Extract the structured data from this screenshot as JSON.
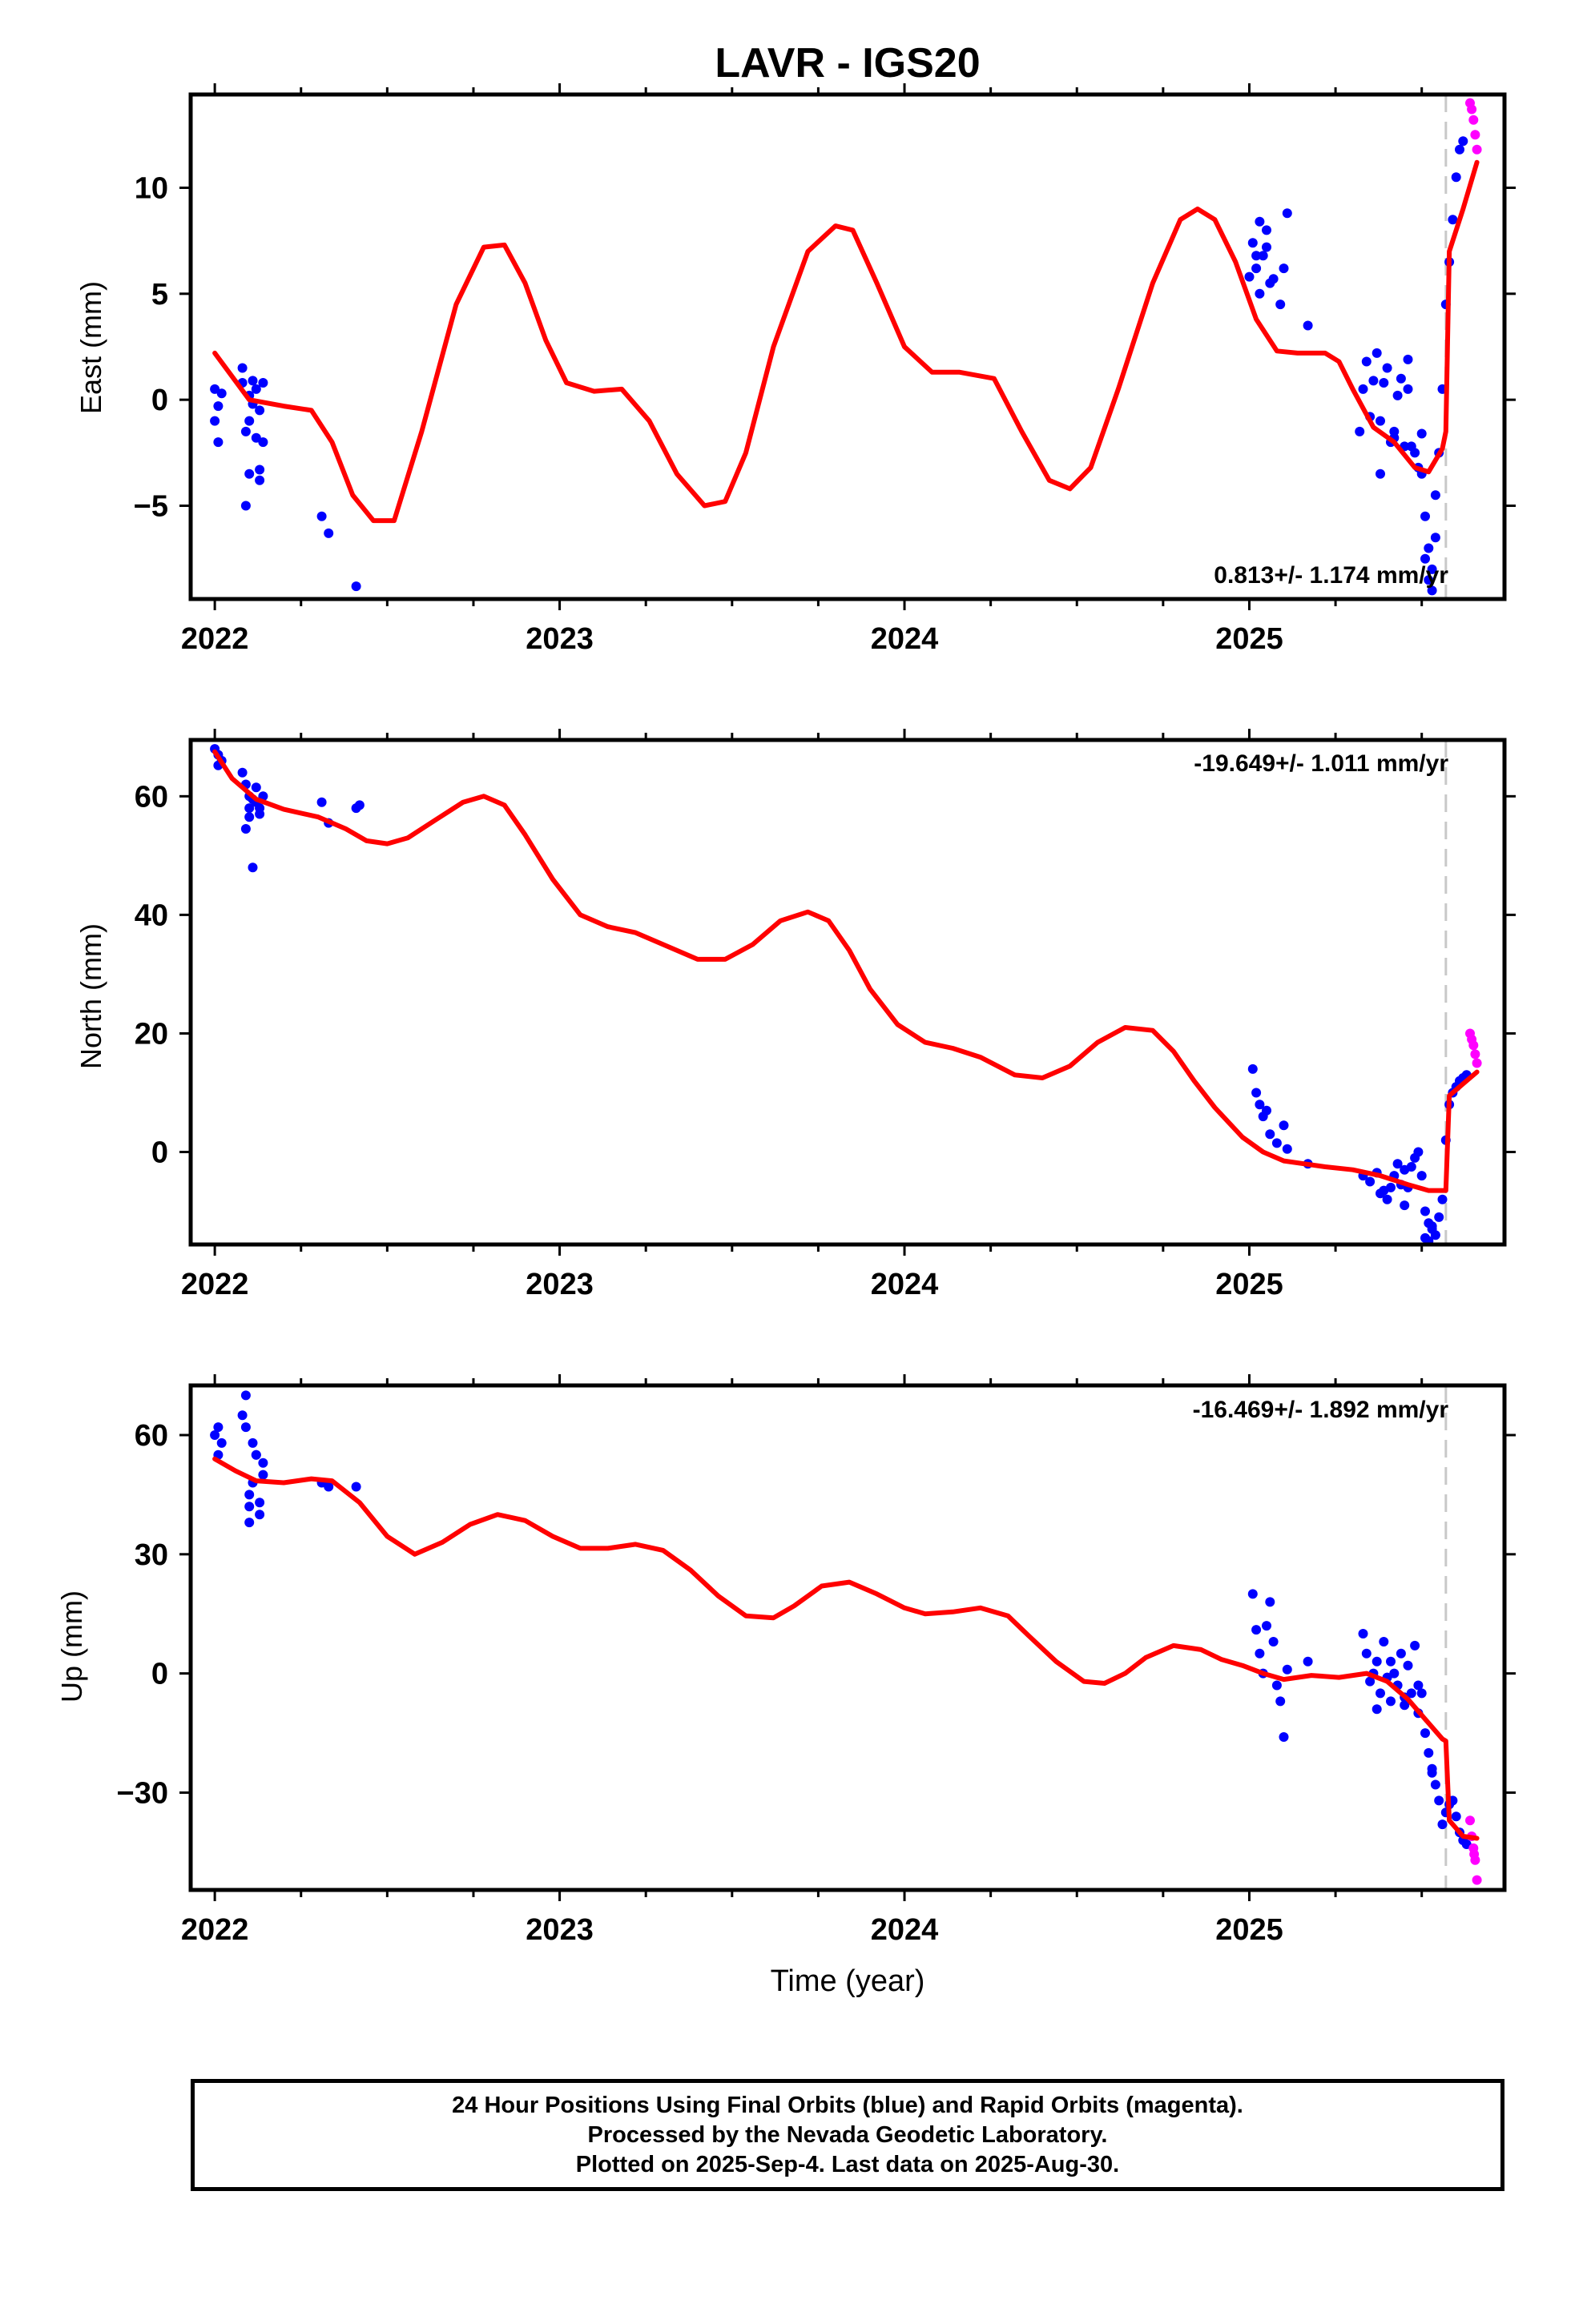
{
  "title": "LAVR - IGS20",
  "caption": [
    "24 Hour Positions Using Final Orbits (blue) and Rapid Orbits (magenta).",
    "Processed by the Nevada Geodetic Laboratory.",
    "Plotted on 2025-Sep-4. Last data on 2025-Aug-30."
  ],
  "colors": {
    "final": "#0000ff",
    "rapid": "#ff00ff",
    "model": "#ff0000",
    "marker": "#c8c8c8",
    "axis": "#000000"
  },
  "chart_data": [
    {
      "type": "scatter",
      "component": "east",
      "ylabel": "East (mm)",
      "xlabel": "",
      "xlim": [
        2021.93,
        2025.74
      ],
      "ylim": [
        -9.4,
        14.4
      ],
      "xticks": [
        2022,
        2023,
        2024,
        2025
      ],
      "yticks": [
        -5,
        0,
        5,
        10
      ],
      "ytick_labels": [
        "−5",
        "0",
        "5",
        "10"
      ],
      "velocity_label": "0.813+/- 1.174 mm/yr",
      "velocity_position": "bottom-right",
      "marker_x": 2025.57,
      "series": [
        {
          "kind": "final",
          "x": [
            2022.0,
            2022.01,
            2022.02,
            2022.0,
            2022.01,
            2022.08,
            2022.08,
            2022.09,
            2022.1,
            2022.1,
            2022.11,
            2022.12,
            2022.13,
            2022.13,
            2022.14,
            2022.09,
            2022.11,
            2022.13,
            2022.1,
            2022.12,
            2022.14,
            2022.31,
            2022.33,
            2022.41,
            2025.0,
            2025.01,
            2025.02,
            2025.03,
            2025.04,
            2025.05,
            2025.06,
            2025.02,
            2025.03,
            2025.05,
            2025.07,
            2025.09,
            2025.1,
            2025.11,
            2025.17,
            2025.32,
            2025.33,
            2025.34,
            2025.35,
            2025.36,
            2025.37,
            2025.38,
            2025.39,
            2025.4,
            2025.41,
            2025.42,
            2025.43,
            2025.44,
            2025.45,
            2025.46,
            2025.47,
            2025.48,
            2025.49,
            2025.5,
            2025.51,
            2025.52,
            2025.53,
            2025.54,
            2025.55,
            2025.56,
            2025.57,
            2025.58,
            2025.59,
            2025.6,
            2025.61,
            2025.62,
            2025.38,
            2025.42,
            2025.46,
            2025.5,
            2025.54,
            2025.51,
            2025.52,
            2025.53
          ],
          "y": [
            -1.0,
            -2.0,
            0.3,
            0.5,
            -0.3,
            1.5,
            0.8,
            -1.5,
            0.2,
            -3.5,
            0.9,
            -1.8,
            -0.5,
            -3.8,
            0.8,
            -5.0,
            -0.2,
            -3.3,
            -1.0,
            0.5,
            -2.0,
            -5.5,
            -6.3,
            -8.8,
            5.8,
            7.4,
            6.2,
            8.4,
            6.8,
            8.0,
            5.5,
            6.8,
            5.0,
            7.2,
            5.7,
            4.5,
            6.2,
            8.8,
            3.5,
            -1.5,
            0.5,
            1.8,
            -0.8,
            0.9,
            2.2,
            -1.0,
            0.8,
            1.5,
            -2.0,
            -1.5,
            0.2,
            1.0,
            -2.2,
            0.5,
            -2.2,
            -2.5,
            -3.2,
            -3.5,
            -5.5,
            -7.0,
            -8.0,
            -4.5,
            -2.5,
            0.5,
            4.5,
            6.5,
            8.5,
            10.5,
            11.8,
            12.2,
            -3.5,
            -1.8,
            1.9,
            -1.6,
            -6.5,
            -7.5,
            -8.5,
            -9.0
          ]
        },
        {
          "kind": "rapid",
          "x": [
            2025.64,
            2025.65,
            2025.655,
            2025.66,
            2025.645
          ],
          "y": [
            14.0,
            13.2,
            12.5,
            11.8,
            13.7
          ]
        }
      ],
      "model": {
        "x": [
          2022.0,
          2022.1,
          2022.2,
          2022.28,
          2022.34,
          2022.4,
          2022.46,
          2022.52,
          2022.6,
          2022.7,
          2022.78,
          2022.84,
          2022.9,
          2022.96,
          2023.02,
          2023.1,
          2023.18,
          2023.26,
          2023.34,
          2023.42,
          2023.48,
          2023.54,
          2023.62,
          2023.72,
          2023.8,
          2023.85,
          2023.92,
          2024.0,
          2024.08,
          2024.16,
          2024.26,
          2024.34,
          2024.42,
          2024.48,
          2024.54,
          2024.62,
          2024.72,
          2024.8,
          2024.85,
          2024.9,
          2024.96,
          2025.02,
          2025.08,
          2025.14,
          2025.22,
          2025.26,
          2025.3,
          2025.36,
          2025.42,
          2025.48,
          2025.52,
          2025.56,
          2025.57,
          2025.58,
          2025.62,
          2025.66
        ],
        "y": [
          2.2,
          0.0,
          -0.3,
          -0.5,
          -2.0,
          -4.5,
          -5.7,
          -5.7,
          -1.5,
          4.5,
          7.2,
          7.3,
          5.5,
          2.8,
          0.8,
          0.4,
          0.5,
          -1.0,
          -3.5,
          -5.0,
          -4.8,
          -2.5,
          2.5,
          7.0,
          8.2,
          8.0,
          5.5,
          2.5,
          1.3,
          1.3,
          1.0,
          -1.5,
          -3.8,
          -4.2,
          -3.2,
          0.5,
          5.5,
          8.5,
          9.0,
          8.5,
          6.5,
          3.8,
          2.3,
          2.2,
          2.2,
          1.8,
          0.5,
          -1.3,
          -2.0,
          -3.2,
          -3.4,
          -2.3,
          -1.5,
          7.0,
          9.0,
          11.2
        ]
      }
    },
    {
      "type": "scatter",
      "component": "north",
      "ylabel": "North (mm)",
      "xlabel": "",
      "xlim": [
        2021.93,
        2025.74
      ],
      "ylim": [
        -15.6,
        69.5
      ],
      "xticks": [
        2022,
        2023,
        2024,
        2025
      ],
      "yticks": [
        0,
        20,
        40,
        60
      ],
      "ytick_labels": [
        "0",
        "20",
        "40",
        "60"
      ],
      "velocity_label": "-19.649+/- 1.011 mm/yr",
      "velocity_position": "top-right",
      "marker_x": 2025.57,
      "series": [
        {
          "kind": "final",
          "x": [
            2022.0,
            2022.01,
            2022.02,
            2022.01,
            2022.08,
            2022.09,
            2022.1,
            2022.1,
            2022.11,
            2022.12,
            2022.13,
            2022.14,
            2022.09,
            2022.11,
            2022.13,
            2022.1,
            2022.12,
            2022.31,
            2022.33,
            2022.41,
            2022.42,
            2025.01,
            2025.02,
            2025.03,
            2025.04,
            2025.05,
            2025.06,
            2025.08,
            2025.1,
            2025.11,
            2025.17,
            2025.33,
            2025.35,
            2025.37,
            2025.38,
            2025.4,
            2025.41,
            2025.42,
            2025.43,
            2025.44,
            2025.45,
            2025.46,
            2025.47,
            2025.48,
            2025.49,
            2025.5,
            2025.51,
            2025.52,
            2025.53,
            2025.54,
            2025.55,
            2025.56,
            2025.57,
            2025.58,
            2025.59,
            2025.6,
            2025.61,
            2025.62,
            2025.63,
            2025.39,
            2025.45,
            2025.51,
            2025.52,
            2025.53
          ],
          "y": [
            68.0,
            67.0,
            66.0,
            65.2,
            64.0,
            62.0,
            60.0,
            58.0,
            59.5,
            61.5,
            57.0,
            60.0,
            54.5,
            48.0,
            58.0,
            56.5,
            59.0,
            59.0,
            55.5,
            58.0,
            58.5,
            14.0,
            10.0,
            8.0,
            6.0,
            7.0,
            3.0,
            1.5,
            4.5,
            0.5,
            -2.0,
            -4.0,
            -5.0,
            -3.5,
            -7.0,
            -8.0,
            -6.0,
            -4.0,
            -2.0,
            -5.5,
            -3.0,
            -6.0,
            -2.5,
            -1.0,
            0.0,
            -4.0,
            -10.0,
            -12.0,
            -13.0,
            -14.0,
            -11.0,
            -8.0,
            2.0,
            8.0,
            10.0,
            11.0,
            12.0,
            12.5,
            13.0,
            -6.5,
            -9.0,
            -14.5,
            -15.0,
            -12.5
          ]
        },
        {
          "kind": "rapid",
          "x": [
            2025.64,
            2025.65,
            2025.655,
            2025.66,
            2025.645
          ],
          "y": [
            20.0,
            18.0,
            16.5,
            15.0,
            19.0
          ]
        }
      ],
      "model": {
        "x": [
          2022.0,
          2022.05,
          2022.12,
          2022.2,
          2022.3,
          2022.38,
          2022.44,
          2022.5,
          2022.56,
          2022.64,
          2022.72,
          2022.78,
          2022.84,
          2022.9,
          2022.98,
          2023.06,
          2023.14,
          2023.22,
          2023.3,
          2023.4,
          2023.48,
          2023.56,
          2023.64,
          2023.72,
          2023.78,
          2023.84,
          2023.9,
          2023.98,
          2024.06,
          2024.14,
          2024.22,
          2024.32,
          2024.4,
          2024.48,
          2024.56,
          2024.64,
          2024.72,
          2024.78,
          2024.84,
          2024.9,
          2024.98,
          2025.04,
          2025.1,
          2025.16,
          2025.22,
          2025.3,
          2025.38,
          2025.46,
          2025.52,
          2025.56,
          2025.57,
          2025.58,
          2025.62,
          2025.66
        ],
        "y": [
          67.5,
          63.0,
          59.5,
          57.8,
          56.5,
          54.5,
          52.5,
          52.0,
          53.0,
          56.0,
          59.0,
          60.0,
          58.5,
          53.5,
          46.0,
          40.0,
          38.0,
          37.0,
          35.0,
          32.5,
          32.5,
          35.0,
          39.0,
          40.5,
          39.0,
          34.0,
          27.5,
          21.5,
          18.5,
          17.5,
          16.0,
          13.0,
          12.5,
          14.5,
          18.5,
          21.0,
          20.5,
          17.0,
          12.0,
          7.5,
          2.5,
          0.0,
          -1.5,
          -2.0,
          -2.5,
          -3.0,
          -4.0,
          -5.5,
          -6.5,
          -6.5,
          -6.5,
          9.5,
          11.5,
          13.5
        ]
      }
    },
    {
      "type": "scatter",
      "component": "up",
      "ylabel": "Up (mm)",
      "xlabel": "Time (year)",
      "xlim": [
        2021.93,
        2025.74
      ],
      "ylim": [
        -54.5,
        72.5
      ],
      "xticks": [
        2022,
        2023,
        2024,
        2025
      ],
      "yticks": [
        -30,
        0,
        30,
        60
      ],
      "ytick_labels": [
        "−30",
        "0",
        "30",
        "60"
      ],
      "velocity_label": "-16.469+/- 1.892 mm/yr",
      "velocity_position": "top-right",
      "marker_x": 2025.57,
      "series": [
        {
          "kind": "final",
          "x": [
            2022.0,
            2022.01,
            2022.02,
            2022.01,
            2022.08,
            2022.09,
            2022.1,
            2022.1,
            2022.11,
            2022.12,
            2022.13,
            2022.14,
            2022.09,
            2022.11,
            2022.13,
            2022.1,
            2022.12,
            2022.14,
            2022.31,
            2022.33,
            2022.41,
            2025.01,
            2025.02,
            2025.03,
            2025.04,
            2025.05,
            2025.06,
            2025.07,
            2025.08,
            2025.09,
            2025.1,
            2025.11,
            2025.17,
            2025.33,
            2025.34,
            2025.35,
            2025.36,
            2025.37,
            2025.38,
            2025.39,
            2025.4,
            2025.41,
            2025.42,
            2025.43,
            2025.44,
            2025.45,
            2025.46,
            2025.47,
            2025.48,
            2025.49,
            2025.5,
            2025.51,
            2025.52,
            2025.53,
            2025.54,
            2025.55,
            2025.56,
            2025.57,
            2025.58,
            2025.59,
            2025.6,
            2025.61,
            2025.62,
            2025.63,
            2025.37,
            2025.41,
            2025.45,
            2025.49,
            2025.53
          ],
          "y": [
            60.0,
            55.0,
            58.0,
            62.0,
            65.0,
            70.0,
            45.0,
            38.0,
            58.0,
            55.0,
            43.0,
            53.0,
            62.0,
            48.0,
            40.0,
            42.0,
            55.0,
            50.0,
            48.0,
            47.0,
            47.0,
            20.0,
            11.0,
            5.0,
            0.0,
            12.0,
            18.0,
            8.0,
            -3.0,
            -7.0,
            -16.0,
            1.0,
            3.0,
            10.0,
            5.0,
            -2.0,
            0.0,
            3.0,
            -5.0,
            8.0,
            -1.0,
            3.0,
            0.0,
            -3.0,
            5.0,
            -8.0,
            2.0,
            -5.0,
            7.0,
            -3.0,
            -5.0,
            -15.0,
            -20.0,
            -25.0,
            -28.0,
            -32.0,
            -38.0,
            -35.0,
            -33.0,
            -32.0,
            -36.0,
            -40.0,
            -42.0,
            -43.0,
            -9.0,
            -7.0,
            -6.0,
            -10.0,
            -24.0
          ]
        },
        {
          "kind": "rapid",
          "x": [
            2025.64,
            2025.645,
            2025.65,
            2025.655,
            2025.66,
            2025.652
          ],
          "y": [
            -37.0,
            -41.0,
            -44.0,
            -47.0,
            -52.0,
            -45.5
          ]
        }
      ],
      "model": {
        "x": [
          2022.0,
          2022.06,
          2022.12,
          2022.2,
          2022.28,
          2022.34,
          2022.42,
          2022.5,
          2022.58,
          2022.66,
          2022.74,
          2022.82,
          2022.9,
          2022.98,
          2023.06,
          2023.14,
          2023.22,
          2023.3,
          2023.38,
          2023.46,
          2023.54,
          2023.62,
          2023.68,
          2023.76,
          2023.84,
          2023.92,
          2024.0,
          2024.06,
          2024.14,
          2024.22,
          2024.3,
          2024.36,
          2024.44,
          2024.52,
          2024.58,
          2024.64,
          2024.7,
          2024.78,
          2024.86,
          2024.92,
          2024.98,
          2025.04,
          2025.1,
          2025.18,
          2025.26,
          2025.34,
          2025.4,
          2025.46,
          2025.52,
          2025.56,
          2025.57,
          2025.58,
          2025.62,
          2025.66
        ],
        "y": [
          54.0,
          51.0,
          48.5,
          48.0,
          49.0,
          48.5,
          43.0,
          34.5,
          30.0,
          33.0,
          37.5,
          40.0,
          38.5,
          34.5,
          31.5,
          31.5,
          32.5,
          31.0,
          26.0,
          19.5,
          14.5,
          14.0,
          17.0,
          22.0,
          23.0,
          20.0,
          16.5,
          15.0,
          15.5,
          16.5,
          14.5,
          9.5,
          3.0,
          -2.0,
          -2.5,
          0.0,
          4.0,
          7.0,
          6.0,
          3.5,
          2.0,
          0.0,
          -1.5,
          -0.5,
          -1.0,
          0.0,
          -2.0,
          -6.5,
          -12.5,
          -16.5,
          -17.0,
          -37.0,
          -41.0,
          -41.5
        ]
      }
    }
  ]
}
